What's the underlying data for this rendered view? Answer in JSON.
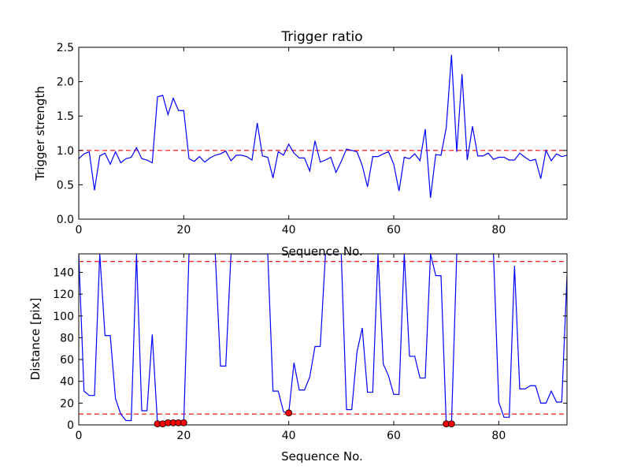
{
  "colors": {
    "line": "#0000ff",
    "threshold": "#ff0000",
    "marker_fill": "#ff0000",
    "marker_edge": "#000000",
    "axes": "#000000",
    "background": "#ffffff"
  },
  "chart_data": [
    {
      "type": "line",
      "title": "Trigger ratio",
      "xlabel": "Sequence No.",
      "ylabel": "Trigger strength",
      "xlim": [
        0,
        93
      ],
      "ylim": [
        0.0,
        2.5
      ],
      "xticks": [
        "0",
        "20",
        "40",
        "60",
        "80"
      ],
      "yticks": [
        "0.0",
        "0.5",
        "1.0",
        "1.5",
        "2.0",
        "2.5"
      ],
      "grid": false,
      "hlines": [
        1.0
      ],
      "series": [
        {
          "x": [
            0,
            1,
            2,
            3,
            4,
            5,
            6,
            7,
            8,
            9,
            10,
            11,
            12,
            13,
            14,
            15,
            16,
            17,
            18,
            19,
            20,
            21,
            22,
            23,
            24,
            25,
            26,
            27,
            28,
            29,
            30,
            31,
            32,
            33,
            34,
            35,
            36,
            37,
            38,
            39,
            40,
            41,
            42,
            43,
            44,
            45,
            46,
            47,
            48,
            49,
            50,
            51,
            52,
            53,
            54,
            55,
            56,
            57,
            58,
            59,
            60,
            61,
            62,
            63,
            64,
            65,
            66,
            67,
            68,
            69,
            70,
            71,
            72,
            73,
            74,
            75,
            76,
            77,
            78,
            79,
            80,
            81,
            82,
            83,
            84,
            85,
            86,
            87,
            88,
            89,
            90,
            91,
            92,
            93
          ],
          "y": [
            0.88,
            0.95,
            0.98,
            0.42,
            0.92,
            0.96,
            0.8,
            0.98,
            0.82,
            0.88,
            0.9,
            1.04,
            0.88,
            0.86,
            0.82,
            1.78,
            1.8,
            1.52,
            1.76,
            1.58,
            1.58,
            0.88,
            0.84,
            0.91,
            0.83,
            0.89,
            0.93,
            0.95,
            0.99,
            0.85,
            0.93,
            0.93,
            0.91,
            0.86,
            1.4,
            0.92,
            0.9,
            0.6,
            0.98,
            0.93,
            1.09,
            0.96,
            0.89,
            0.89,
            0.7,
            1.14,
            0.83,
            0.86,
            0.9,
            0.68,
            0.84,
            1.02,
            1.0,
            0.98,
            0.78,
            0.47,
            0.91,
            0.91,
            0.95,
            0.98,
            0.8,
            0.41,
            0.9,
            0.88,
            0.95,
            0.85,
            1.31,
            0.31,
            0.94,
            0.93,
            1.33,
            2.39,
            0.98,
            2.11,
            0.86,
            1.35,
            0.92,
            0.92,
            0.96,
            0.87,
            0.9,
            0.9,
            0.86,
            0.86,
            0.96,
            0.9,
            0.85,
            0.87,
            0.59,
            1.0,
            0.85,
            0.95,
            0.91,
            0.93
          ]
        }
      ]
    },
    {
      "type": "line",
      "title": "",
      "xlabel": "Sequence No.",
      "ylabel": "Distance [pix]",
      "xlim": [
        0,
        93
      ],
      "ylim": [
        0,
        157
      ],
      "xticks": [
        "0",
        "20",
        "40",
        "60",
        "80"
      ],
      "yticks": [
        "0",
        "20",
        "40",
        "60",
        "80",
        "100",
        "120",
        "140"
      ],
      "grid": false,
      "hlines": [
        10,
        150
      ],
      "series": [
        {
          "x": [
            0,
            1,
            2,
            3,
            4,
            5,
            6,
            7,
            8,
            9,
            10,
            11,
            12,
            13,
            14,
            15,
            16,
            17,
            18,
            19,
            20,
            21,
            22,
            23,
            24,
            25,
            26,
            27,
            28,
            29,
            30,
            31,
            32,
            33,
            34,
            35,
            36,
            37,
            38,
            39,
            40,
            41,
            42,
            43,
            44,
            45,
            46,
            47,
            48,
            49,
            50,
            51,
            52,
            53,
            54,
            55,
            56,
            57,
            58,
            59,
            60,
            61,
            62,
            63,
            64,
            65,
            66,
            67,
            68,
            69,
            70,
            71,
            72,
            73,
            74,
            75,
            76,
            77,
            78,
            79,
            80,
            81,
            82,
            83,
            84,
            85,
            86,
            87,
            88,
            89,
            90,
            91,
            92,
            93
          ],
          "y": [
            157,
            31,
            27,
            27,
            157,
            82,
            82,
            24,
            10,
            4,
            4,
            157,
            13,
            13,
            83,
            1,
            1,
            2,
            2,
            2,
            2,
            157,
            157,
            157,
            157,
            157,
            157,
            54,
            54,
            157,
            157,
            157,
            157,
            157,
            157,
            157,
            157,
            31,
            31,
            12,
            11,
            57,
            32,
            32,
            44,
            72,
            72,
            157,
            157,
            157,
            157,
            14,
            14,
            67,
            89,
            30,
            30,
            157,
            56,
            45,
            28,
            28,
            157,
            63,
            63,
            43,
            43,
            157,
            137,
            137,
            1,
            1,
            157,
            157,
            157,
            157,
            157,
            157,
            157,
            157,
            21,
            7,
            7,
            146,
            33,
            33,
            36,
            36,
            20,
            20,
            31,
            21,
            21,
            137
          ]
        }
      ],
      "markers": {
        "x": [
          15,
          16,
          17,
          18,
          19,
          20,
          40,
          70,
          71
        ],
        "y": [
          1,
          1,
          2,
          2,
          2,
          2,
          11,
          1,
          1
        ]
      }
    }
  ]
}
